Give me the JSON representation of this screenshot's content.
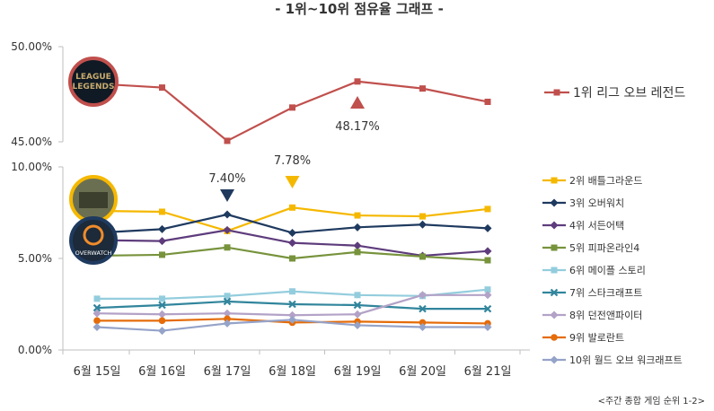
{
  "chart_data": [
    {
      "type": "line",
      "title": "- 1위~10위 점유율 그래프 -",
      "categories": [
        "6월 15일",
        "6월 16일",
        "6월 17일",
        "6월 18일",
        "6월 19일",
        "6월 20일",
        "6월 21일"
      ],
      "yticks": [
        "50.00%",
        "45.00%"
      ],
      "ylim": [
        45,
        50
      ],
      "series": [
        {
          "name": "1위 리그 오브 레전드",
          "color": "#c0504d",
          "marker": "square",
          "values": [
            48.05,
            47.85,
            45.05,
            46.8,
            48.17,
            47.8,
            47.1
          ]
        }
      ],
      "annotations": [
        {
          "text": "48.17%",
          "category": "6월 19일",
          "value": 48.17,
          "marker": "triangle-up",
          "color": "#c0504d"
        }
      ],
      "icon": "league-of-legends-logo",
      "icon_text": [
        "LEAGUE",
        "LEGENDS"
      ]
    },
    {
      "type": "line",
      "categories": [
        "6월 15일",
        "6월 16일",
        "6월 17일",
        "6월 18일",
        "6월 19일",
        "6월 20일",
        "6월 21일"
      ],
      "yticks": [
        "10.00%",
        "5.00%",
        "0.00%"
      ],
      "ylim": [
        0,
        10
      ],
      "series": [
        {
          "name": "2위 배틀그라운드",
          "color": "#f5b800",
          "marker": "square",
          "values": [
            7.6,
            7.55,
            6.5,
            7.78,
            7.35,
            7.3,
            7.7
          ]
        },
        {
          "name": "3위 오버워치",
          "color": "#1f3a5f",
          "marker": "diamond",
          "values": [
            6.4,
            6.6,
            7.4,
            6.4,
            6.7,
            6.85,
            6.65
          ]
        },
        {
          "name": "4위 서든어택",
          "color": "#5e3c7c",
          "marker": "diamond",
          "values": [
            6.0,
            5.95,
            6.55,
            5.85,
            5.7,
            5.15,
            5.4
          ]
        },
        {
          "name": "5위 피파온라인4",
          "color": "#77933c",
          "marker": "square",
          "values": [
            5.15,
            5.2,
            5.6,
            5.0,
            5.35,
            5.1,
            4.9
          ]
        },
        {
          "name": "6위 메이플 스토리",
          "color": "#93cddd",
          "marker": "square",
          "values": [
            2.8,
            2.8,
            2.95,
            3.2,
            3.0,
            2.95,
            3.3
          ]
        },
        {
          "name": "7위 스타크래프트",
          "color": "#31859c",
          "marker": "cross",
          "values": [
            2.3,
            2.45,
            2.65,
            2.5,
            2.45,
            2.25,
            2.25
          ]
        },
        {
          "name": "8위 던전앤파이터",
          "color": "#b3a2c7",
          "marker": "diamond",
          "values": [
            2.0,
            1.95,
            2.0,
            1.9,
            1.95,
            3.0,
            3.0
          ]
        },
        {
          "name": "9위 발로란트",
          "color": "#e46c0a",
          "marker": "circle",
          "values": [
            1.6,
            1.6,
            1.7,
            1.5,
            1.55,
            1.5,
            1.45
          ]
        },
        {
          "name": "10위 월드 오브 워크래프트",
          "color": "#95a3c9",
          "marker": "diamond",
          "values": [
            1.25,
            1.05,
            1.45,
            1.65,
            1.35,
            1.25,
            1.25
          ]
        }
      ],
      "annotations": [
        {
          "text": "7.40%",
          "category": "6월 17일",
          "value": 7.4,
          "marker": "triangle-down",
          "color": "#1f3a5f"
        },
        {
          "text": "7.78%",
          "category": "6월 18일",
          "value": 7.78,
          "marker": "triangle-down",
          "color": "#f5b800"
        }
      ],
      "icons": [
        {
          "name": "battlegrounds-logo",
          "ring": "#f5b800"
        },
        {
          "name": "overwatch-logo",
          "ring": "#1f3a5f",
          "text": "OVERWATCH"
        }
      ]
    }
  ],
  "footnote": "<주간 종합 게임 순위 1-2>"
}
